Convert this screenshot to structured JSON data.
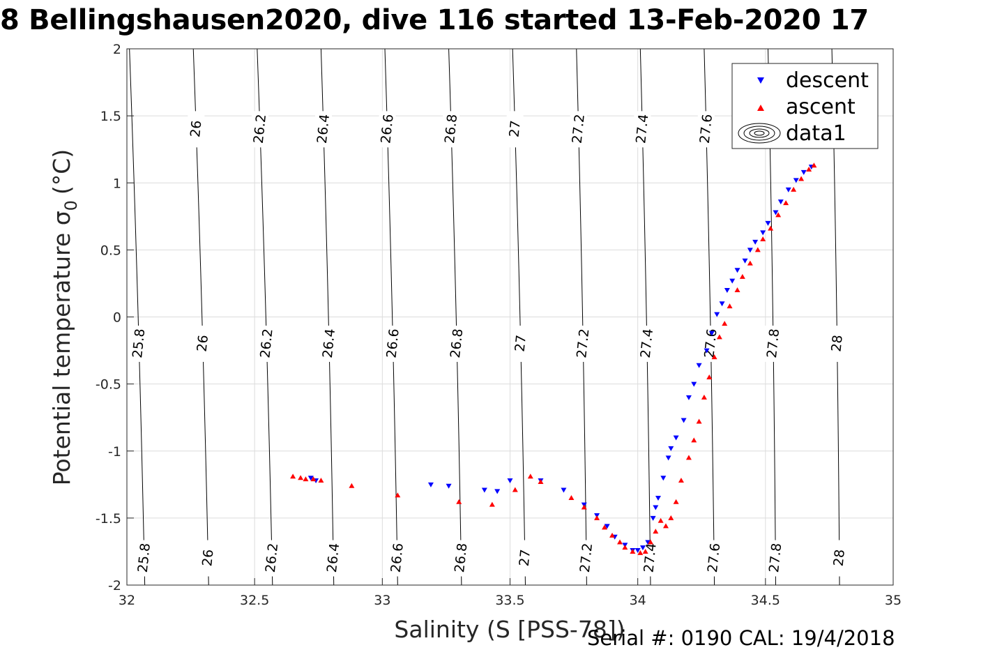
{
  "page": {
    "title": "8 Bellingshausen2020, dive 116 started 13-Feb-2020 17",
    "footer": "Serial #: 0190  CAL: 19/4/2018"
  },
  "chart_data": {
    "type": "scatter",
    "xlabel": "Salinity (S [PSS-78])",
    "ylabel": "Potential temperature σ",
    "ylabel_sub": "0",
    "ylabel_unit": "(°C)",
    "xlim": [
      32,
      35
    ],
    "ylim": [
      -2,
      2
    ],
    "xticks": [
      32,
      32.5,
      33,
      33.5,
      34,
      34.5,
      35
    ],
    "xtick_labels": [
      "32",
      "32.5",
      "33",
      "33.5",
      "34",
      "34.5",
      "35"
    ],
    "yticks": [
      -2,
      -1.5,
      -1,
      -0.5,
      0,
      0.5,
      1,
      1.5,
      2
    ],
    "ytick_labels": [
      "-2",
      "-1.5",
      "-1",
      "-0.5",
      "0",
      "0.5",
      "1",
      "1.5",
      "2"
    ],
    "grid": true,
    "legend": {
      "position": "top-right",
      "entries": [
        {
          "label": "descent",
          "marker": "triangle-down",
          "color": "#0000ff"
        },
        {
          "label": "ascent",
          "marker": "triangle-up",
          "color": "#ff0000"
        },
        {
          "label": "data1",
          "marker": "contour",
          "color": "#000000"
        }
      ]
    },
    "contours": [
      {
        "label": "25.8",
        "s_at_tmin2": 32.07,
        "s_at_t2": 32.01
      },
      {
        "label": "26",
        "s_at_tmin2": 32.32,
        "s_at_t2": 32.26
      },
      {
        "label": "26.2",
        "s_at_tmin2": 32.57,
        "s_at_t2": 32.51
      },
      {
        "label": "26.4",
        "s_at_tmin2": 32.81,
        "s_at_t2": 32.76
      },
      {
        "label": "26.6",
        "s_at_tmin2": 33.06,
        "s_at_t2": 33.01
      },
      {
        "label": "26.8",
        "s_at_tmin2": 33.31,
        "s_at_t2": 33.26
      },
      {
        "label": "27",
        "s_at_tmin2": 33.56,
        "s_at_t2": 33.51
      },
      {
        "label": "27.2",
        "s_at_tmin2": 33.8,
        "s_at_t2": 33.76
      },
      {
        "label": "27.4",
        "s_at_tmin2": 34.05,
        "s_at_t2": 34.01
      },
      {
        "label": "27.6",
        "s_at_tmin2": 34.3,
        "s_at_t2": 34.26
      },
      {
        "label": "27.8",
        "s_at_tmin2": 34.54,
        "s_at_t2": 34.51
      },
      {
        "label": "28",
        "s_at_tmin2": 34.79,
        "s_at_t2": 34.76
      }
    ],
    "series": [
      {
        "name": "descent",
        "marker": "triangle-down",
        "color": "#0000ff",
        "x": [
          32.72,
          32.74,
          33.19,
          33.26,
          33.4,
          33.45,
          33.5,
          33.62,
          33.71,
          33.79,
          33.84,
          33.88,
          33.91,
          33.95,
          33.98,
          34.0,
          34.02,
          34.04,
          34.06,
          34.07,
          34.08,
          34.1,
          34.12,
          34.13,
          34.15,
          34.18,
          34.2,
          34.22,
          34.24,
          34.27,
          34.29,
          34.31,
          34.33,
          34.35,
          34.37,
          34.39,
          34.42,
          34.44,
          34.46,
          34.49,
          34.51,
          34.54,
          34.56,
          34.59,
          34.62,
          34.65,
          34.68
        ],
        "y": [
          -1.2,
          -1.22,
          -1.25,
          -1.26,
          -1.29,
          -1.3,
          -1.22,
          -1.22,
          -1.29,
          -1.4,
          -1.48,
          -1.56,
          -1.64,
          -1.7,
          -1.74,
          -1.74,
          -1.72,
          -1.68,
          -1.5,
          -1.42,
          -1.35,
          -1.2,
          -1.05,
          -0.98,
          -0.9,
          -0.77,
          -0.6,
          -0.5,
          -0.36,
          -0.25,
          -0.12,
          0.02,
          0.1,
          0.2,
          0.27,
          0.35,
          0.42,
          0.5,
          0.56,
          0.63,
          0.7,
          0.78,
          0.86,
          0.95,
          1.02,
          1.08,
          1.12
        ]
      },
      {
        "name": "ascent",
        "marker": "triangle-up",
        "color": "#ff0000",
        "x": [
          32.65,
          32.68,
          32.7,
          32.73,
          32.76,
          32.88,
          33.06,
          33.3,
          33.43,
          33.52,
          33.58,
          33.62,
          33.74,
          33.79,
          33.84,
          33.87,
          33.9,
          33.93,
          33.95,
          33.98,
          34.01,
          34.03,
          34.05,
          34.07,
          34.09,
          34.11,
          34.13,
          34.15,
          34.17,
          34.2,
          34.22,
          34.24,
          34.26,
          34.28,
          34.3,
          34.32,
          34.34,
          34.36,
          34.39,
          34.41,
          34.44,
          34.47,
          34.49,
          34.52,
          34.55,
          34.58,
          34.61,
          34.64,
          34.67,
          34.69
        ],
        "y": [
          -1.19,
          -1.2,
          -1.21,
          -1.21,
          -1.22,
          -1.26,
          -1.33,
          -1.38,
          -1.4,
          -1.29,
          -1.19,
          -1.23,
          -1.35,
          -1.42,
          -1.5,
          -1.57,
          -1.63,
          -1.68,
          -1.72,
          -1.75,
          -1.76,
          -1.75,
          -1.68,
          -1.6,
          -1.52,
          -1.56,
          -1.5,
          -1.38,
          -1.22,
          -1.05,
          -0.92,
          -0.78,
          -0.6,
          -0.45,
          -0.3,
          -0.15,
          -0.05,
          0.08,
          0.2,
          0.3,
          0.4,
          0.5,
          0.58,
          0.66,
          0.76,
          0.85,
          0.95,
          1.03,
          1.1,
          1.13
        ]
      }
    ]
  }
}
